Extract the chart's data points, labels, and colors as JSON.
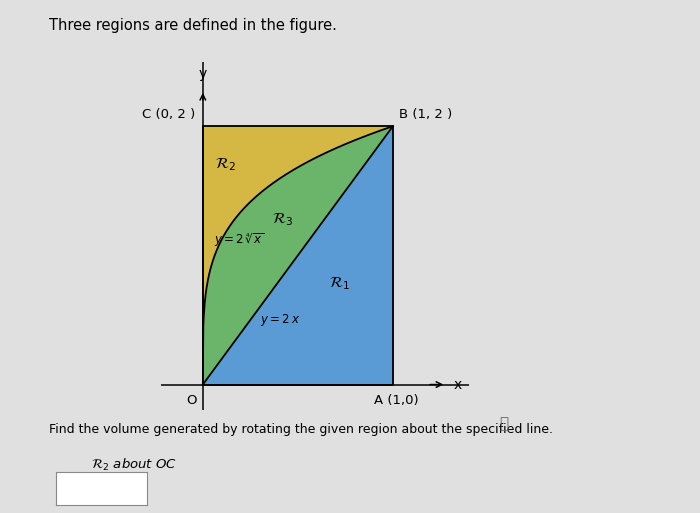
{
  "title": "Three regions are defined in the figure.",
  "bg_color": "#e0e0e0",
  "region_colors": {
    "R1": "#5b9bd5",
    "R2": "#d4b843",
    "R3": "#6ab56a"
  },
  "footer_text": "Find the volume generated by rotating the given region about the specified line.",
  "sub_text": "$\\mathcal{R}_2$ about $OC$",
  "label_C": "C (0, 2 )",
  "label_B": "B (1, 2 )",
  "label_A": "A (1,0)",
  "label_O": "O",
  "label_x": "x",
  "label_y": "y"
}
